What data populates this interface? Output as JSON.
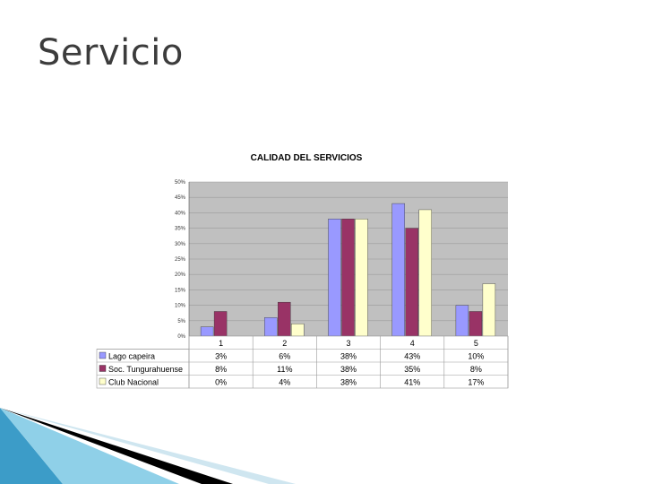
{
  "slide": {
    "title": "Servicio"
  },
  "chart_data": {
    "type": "bar",
    "title": "CALIDAD DEL SERVICIOS",
    "categories": [
      "1",
      "2",
      "3",
      "4",
      "5"
    ],
    "y_ticks": [
      "0%",
      "5%",
      "10%",
      "15%",
      "20%",
      "25%",
      "30%",
      "35%",
      "40%",
      "45%",
      "50%"
    ],
    "ylim": [
      0,
      50
    ],
    "grid": true,
    "legend": "table-below",
    "series": [
      {
        "name": "Lago capeira",
        "color": "#9999ff",
        "values": [
          3,
          6,
          38,
          43,
          10
        ],
        "labels": [
          "3%",
          "6%",
          "38%",
          "43%",
          "10%"
        ]
      },
      {
        "name": "Soc. Tungurahuense",
        "color": "#993366",
        "values": [
          8,
          11,
          38,
          35,
          8
        ],
        "labels": [
          "8%",
          "11%",
          "38%",
          "35%",
          "8%"
        ]
      },
      {
        "name": "Club Nacional",
        "color": "#ffffcc",
        "values": [
          0,
          4,
          38,
          41,
          17
        ],
        "labels": [
          "0%",
          "4%",
          "38%",
          "41%",
          "17%"
        ]
      }
    ]
  }
}
